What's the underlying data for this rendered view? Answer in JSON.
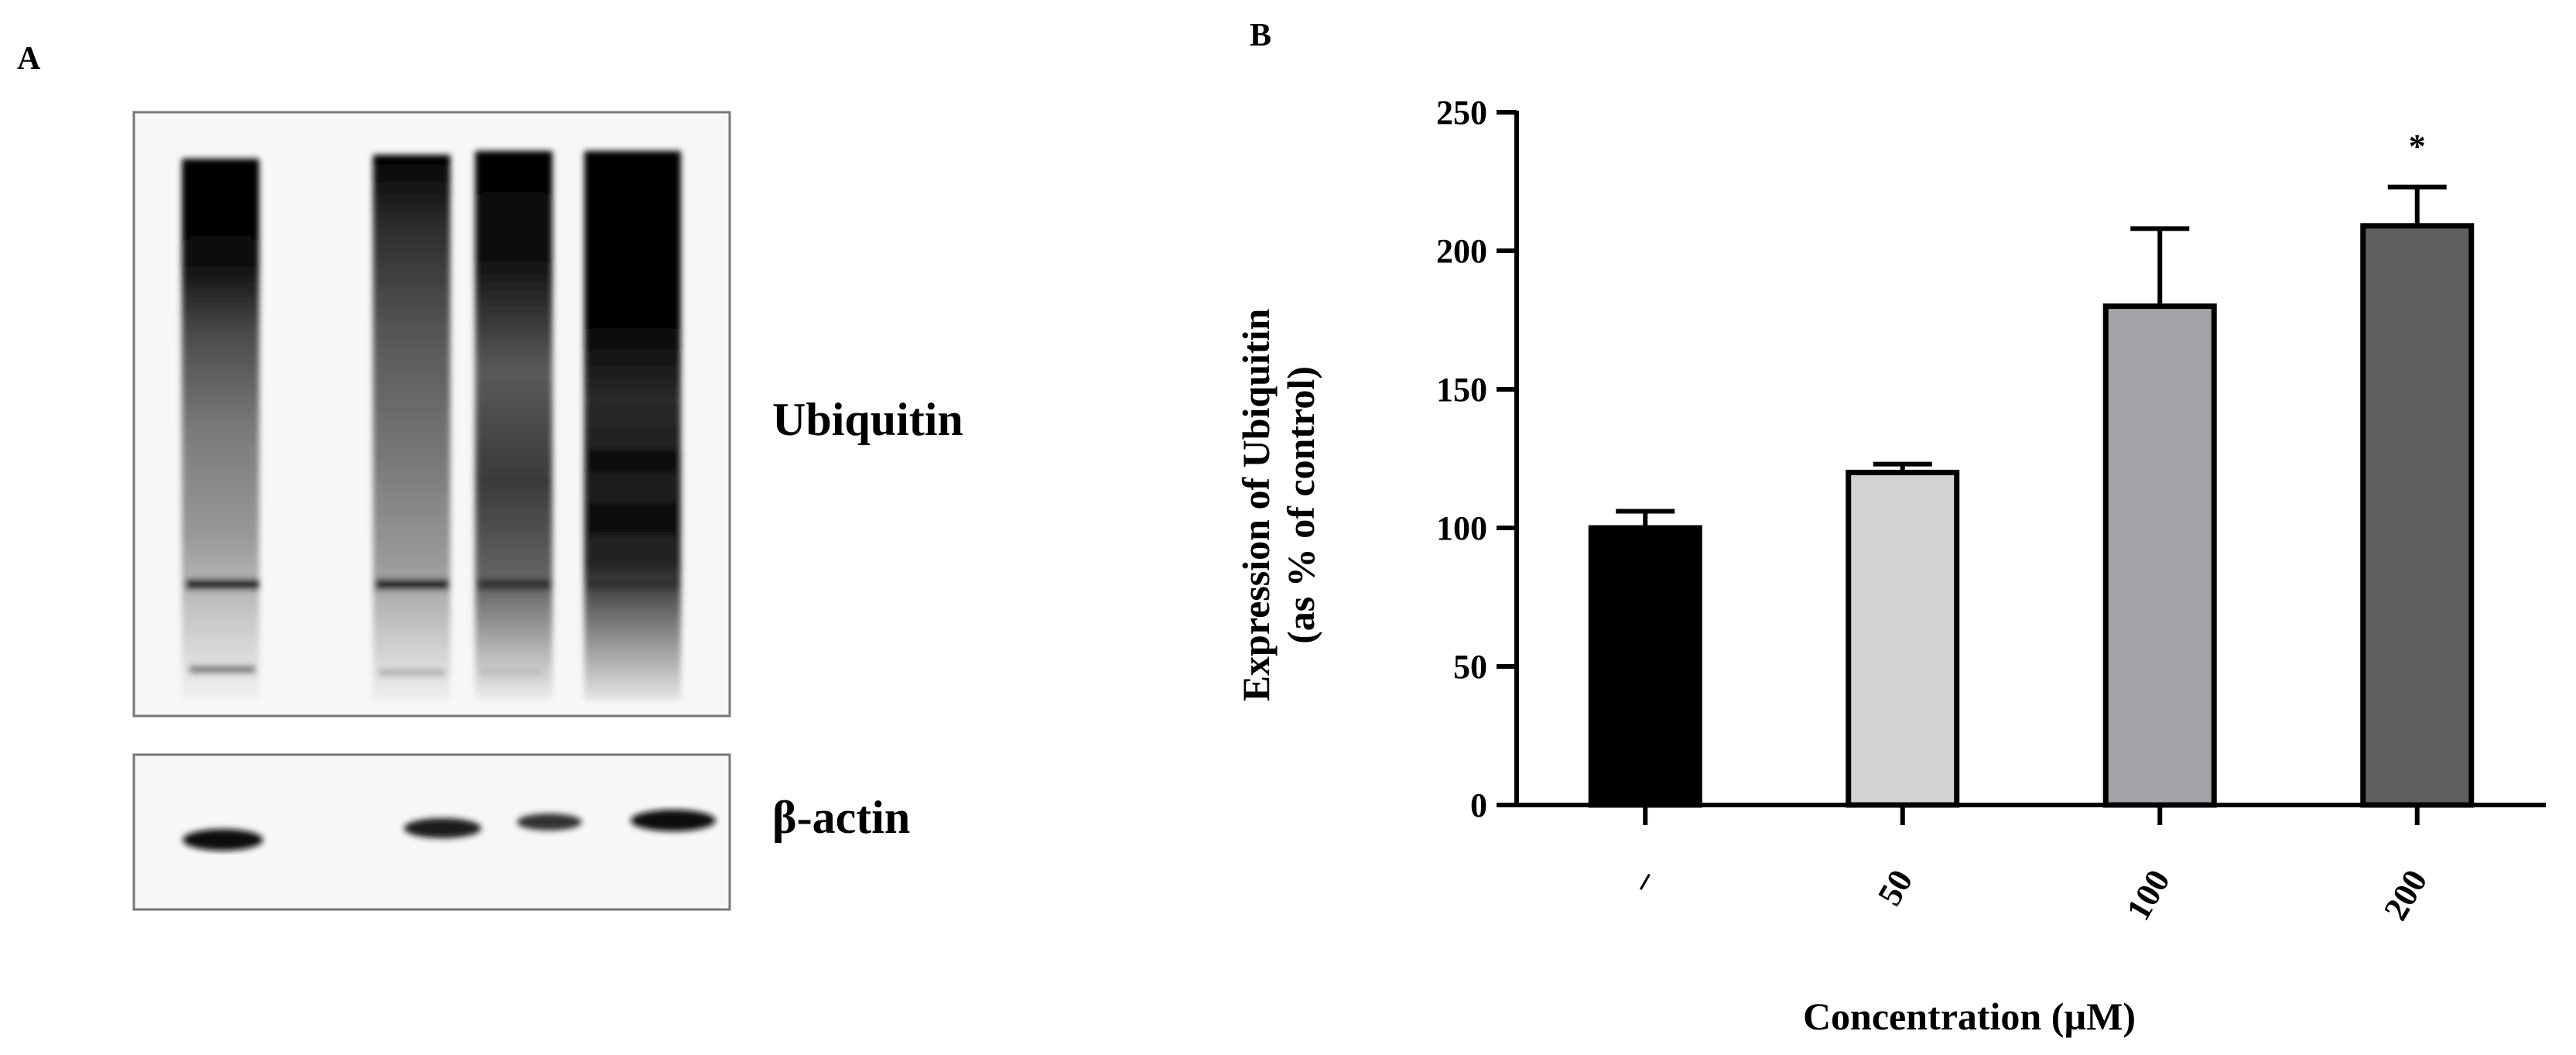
{
  "panel_a": {
    "letter": "A",
    "blots": [
      {
        "label": "Ubiquitin"
      },
      {
        "label": "β-actin"
      }
    ]
  },
  "panel_b": {
    "letter": "B"
  },
  "chart_data": {
    "type": "bar",
    "categories": [
      "–",
      "50",
      "100",
      "200"
    ],
    "values": [
      100,
      120,
      180,
      209
    ],
    "error": [
      6,
      3,
      28,
      14
    ],
    "annotations": [
      "",
      "",
      "",
      "*"
    ],
    "colors": [
      "#000000",
      "#d3d3d3",
      "#a3a3a8",
      "#5f5f5f"
    ],
    "title": "",
    "xlabel": "Concentration (µM)",
    "ylabel": [
      "Expression of Ubiquitin",
      "(as % of control)"
    ],
    "ylim": [
      0,
      250
    ],
    "yticks": [
      0,
      50,
      100,
      150,
      200,
      250
    ],
    "grid": false
  }
}
